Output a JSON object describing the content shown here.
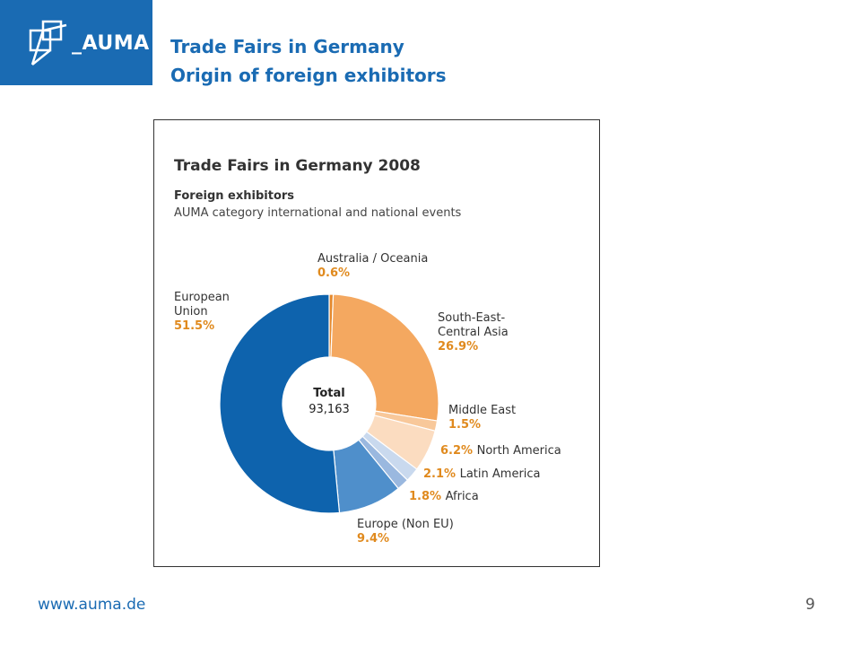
{
  "header": {
    "logo_text": "_AUMA",
    "title_line1": "Trade Fairs in Germany",
    "title_line2": "Origin of foreign exhibitors"
  },
  "footer": {
    "url": "www.auma.de",
    "page_number": "9"
  },
  "colors": {
    "brand_blue": "#1a6bb3",
    "value_orange": "#e08a1e"
  },
  "chart_data": {
    "type": "pie",
    "variant": "donut",
    "title": "Trade Fairs in Germany 2008",
    "subtitle_line1": "Foreign exhibitors",
    "subtitle_line2": "AUMA category international and national events",
    "center_label": "Total",
    "center_value": "93,163",
    "slices": [
      {
        "label": "Australia / Oceania",
        "value": 0.6,
        "value_text": "0.6%",
        "color": "#e4882c"
      },
      {
        "label": "South-East-Central Asia",
        "label_lines": [
          "South-East-",
          "Central Asia"
        ],
        "value": 26.9,
        "value_text": "26.9%",
        "color": "#f4a860"
      },
      {
        "label": "Middle East",
        "value": 1.5,
        "value_text": "1.5%",
        "color": "#f8c89a"
      },
      {
        "label": "North America",
        "value": 6.2,
        "value_text": "6.2%",
        "color": "#fbdcc0"
      },
      {
        "label": "Latin America",
        "value": 2.1,
        "value_text": "2.1%",
        "color": "#c9d9ee"
      },
      {
        "label": "Africa",
        "value": 1.8,
        "value_text": "1.8%",
        "color": "#9ab8df"
      },
      {
        "label": "Europe (Non EU)",
        "value": 9.4,
        "value_text": "9.4%",
        "color": "#4f8fcb"
      },
      {
        "label": "European Union",
        "label_lines": [
          "European",
          "Union"
        ],
        "value": 51.5,
        "value_text": "51.5%",
        "color": "#0e63ad"
      }
    ]
  }
}
